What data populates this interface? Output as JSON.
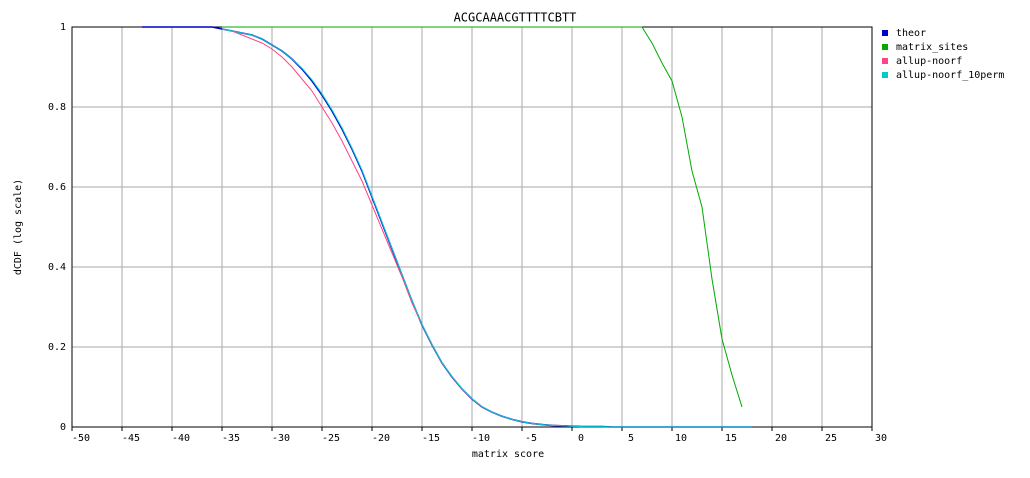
{
  "chart_data": {
    "type": "line",
    "title": "ACGCAAACGTTTTCBTT",
    "x_label": "matrix score",
    "y_label": "dCDF (log scale)",
    "x": [
      -43,
      -42,
      -41,
      -40,
      -39,
      -38,
      -37,
      -36,
      -35,
      -34,
      -33,
      -32,
      -31,
      -30,
      -29,
      -28,
      -27,
      -26,
      -25,
      -24,
      -23,
      -22,
      -21,
      -20,
      -19,
      -18,
      -17,
      -16,
      -15,
      -14,
      -13,
      -12,
      -11,
      -10,
      -9,
      -8,
      -7,
      -6,
      -5,
      -4,
      -3,
      -2,
      -1,
      0,
      1,
      2,
      3,
      4,
      5,
      6,
      7,
      8,
      9,
      10,
      11,
      12,
      13,
      14,
      15,
      16,
      17,
      18
    ],
    "series": [
      {
        "name": "theor",
        "color": "#0000cc",
        "values": [
          1,
          1,
          1,
          1,
          1,
          1,
          1,
          1,
          0.995,
          0.99,
          0.985,
          0.98,
          0.97,
          0.955,
          0.94,
          0.92,
          0.895,
          0.865,
          0.83,
          0.79,
          0.745,
          0.695,
          0.64,
          0.575,
          0.51,
          0.445,
          0.38,
          0.315,
          0.255,
          0.205,
          0.16,
          0.125,
          0.095,
          0.07,
          0.05,
          0.037,
          0.027,
          0.019,
          0.013,
          0.009,
          0.006,
          0.004,
          0.003,
          0.002,
          0.001,
          0.001,
          0.001,
          0,
          0,
          0,
          0,
          0,
          0,
          0,
          0,
          0,
          0,
          0,
          0,
          0,
          0,
          0
        ]
      },
      {
        "name": "matrix_sites",
        "color": "#00aa00",
        "values": [
          null,
          null,
          null,
          null,
          null,
          null,
          null,
          null,
          1,
          1,
          1,
          1,
          1,
          1,
          1,
          1,
          1,
          1,
          1,
          1,
          1,
          1,
          1,
          1,
          1,
          1,
          1,
          1,
          1,
          1,
          1,
          1,
          1,
          1,
          1,
          1,
          1,
          1,
          1,
          1,
          1,
          1,
          1,
          1,
          1,
          1,
          1,
          1,
          1,
          1,
          1,
          0.96,
          0.91,
          0.865,
          0.775,
          0.64,
          0.55,
          0.37,
          0.22,
          0.13,
          0.05,
          null
        ]
      },
      {
        "name": "allup-noorf",
        "color": "#ff4488",
        "values": [
          null,
          null,
          null,
          null,
          null,
          null,
          null,
          null,
          0.995,
          0.99,
          0.98,
          0.97,
          0.96,
          0.945,
          0.925,
          0.9,
          0.87,
          0.84,
          0.8,
          0.76,
          0.715,
          0.665,
          0.615,
          0.555,
          0.495,
          0.435,
          0.375,
          0.31,
          0.255,
          0.205,
          0.16,
          0.125,
          0.095,
          0.07,
          0.05,
          0.037,
          0.027,
          0.019,
          0.013,
          0.009,
          0.006,
          0.004,
          0.003,
          0.002,
          0.001,
          null,
          null,
          null,
          null,
          null,
          null,
          null,
          null,
          null,
          null,
          null,
          null,
          null,
          null,
          null,
          null,
          null
        ]
      },
      {
        "name": "allup-noorf_10perm",
        "color": "#00cccc",
        "values": [
          null,
          null,
          null,
          null,
          null,
          null,
          null,
          null,
          0.995,
          0.99,
          0.985,
          0.98,
          0.97,
          0.955,
          0.94,
          0.92,
          0.897,
          0.868,
          0.833,
          0.793,
          0.748,
          0.697,
          0.642,
          0.577,
          0.512,
          0.446,
          0.381,
          0.316,
          0.256,
          0.206,
          0.161,
          0.126,
          0.096,
          0.071,
          0.051,
          0.037,
          0.027,
          0.019,
          0.013,
          0.009,
          0.006,
          0.004,
          0.003,
          0.002,
          0.001,
          0.001,
          0.001,
          0,
          0,
          0,
          0,
          0,
          0,
          0,
          0,
          0,
          0,
          0,
          0,
          0,
          0,
          0
        ]
      }
    ],
    "xlim": [
      -50,
      30
    ],
    "ylim": [
      0,
      1
    ],
    "xticks": [
      -50,
      -45,
      -40,
      -35,
      -30,
      -25,
      -20,
      -15,
      -10,
      -5,
      0,
      5,
      10,
      15,
      20,
      25,
      30
    ],
    "yticks": [
      0,
      0.2,
      0.4,
      0.6,
      0.8,
      1
    ],
    "grid": true,
    "legend": "right"
  }
}
